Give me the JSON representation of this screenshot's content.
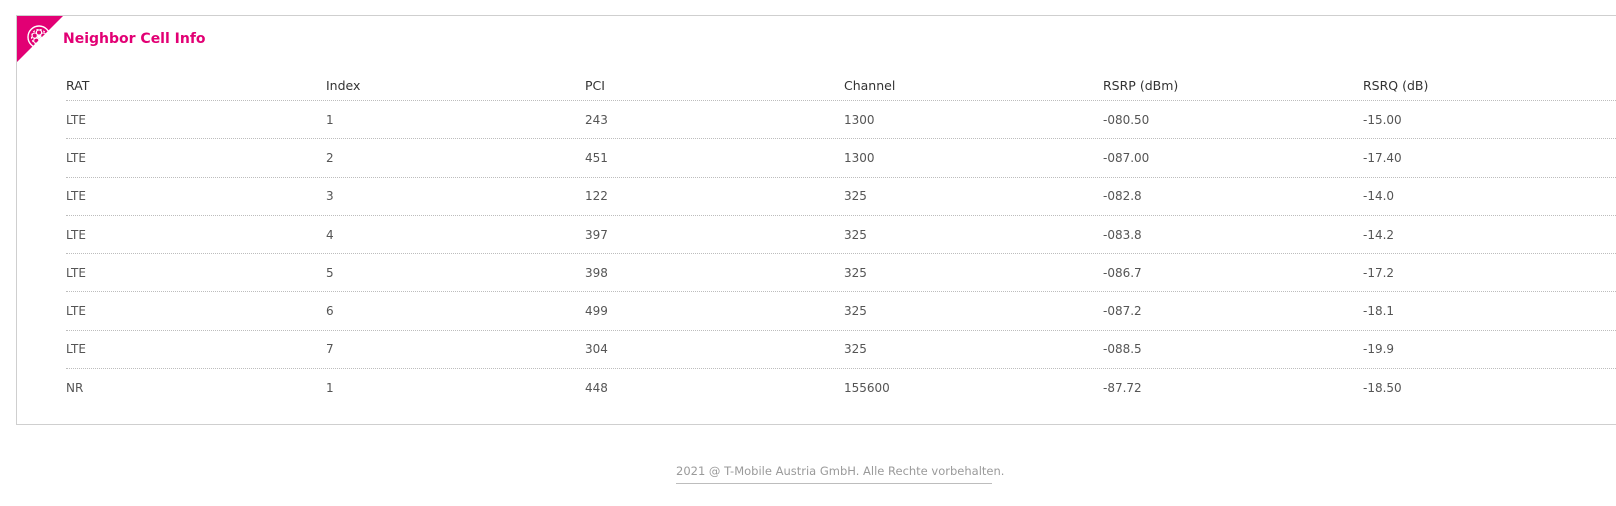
{
  "panel": {
    "title": "Neighbor Cell Info",
    "icon": "rosette-icon",
    "accent_color": "#e20074"
  },
  "table": {
    "headers": [
      "RAT",
      "Index",
      "PCI",
      "Channel",
      "RSRP (dBm)",
      "RSRQ (dB)"
    ],
    "rows": [
      [
        "LTE",
        "1",
        "243",
        "1300",
        "-080.50",
        "-15.00"
      ],
      [
        "LTE",
        "2",
        "451",
        "1300",
        "-087.00",
        "-17.40"
      ],
      [
        "LTE",
        "3",
        "122",
        "325",
        "-082.8",
        "-14.0"
      ],
      [
        "LTE",
        "4",
        "397",
        "325",
        "-083.8",
        "-14.2"
      ],
      [
        "LTE",
        "5",
        "398",
        "325",
        "-086.7",
        "-17.2"
      ],
      [
        "LTE",
        "6",
        "499",
        "325",
        "-087.2",
        "-18.1"
      ],
      [
        "LTE",
        "7",
        "304",
        "325",
        "-088.5",
        "-19.9"
      ],
      [
        "NR",
        "1",
        "448",
        "155600",
        "-87.72",
        "-18.50"
      ]
    ]
  },
  "footer": {
    "text": "2021 @ T-Mobile Austria GmbH. Alle Rechte vorbehalten."
  }
}
